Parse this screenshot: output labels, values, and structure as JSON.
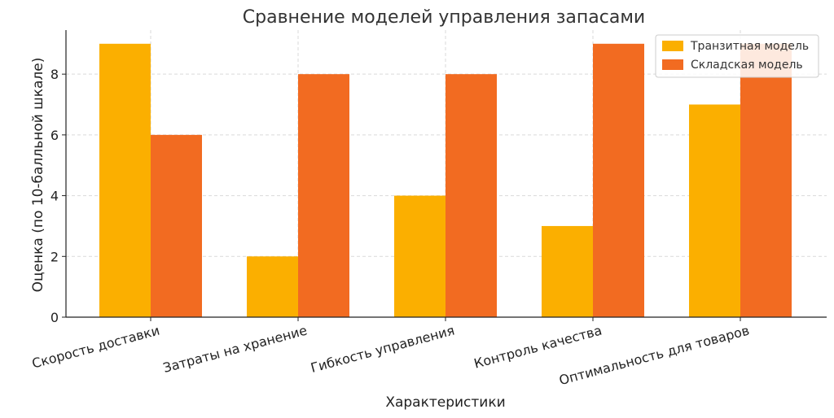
{
  "chart_data": {
    "type": "bar",
    "title": "Сравнение моделей управления запасами",
    "xlabel": "Характеристики",
    "ylabel": "Оценка (по 10-балльной шкале)",
    "categories": [
      "Скорость доставки",
      "Затраты на хранение",
      "Гибкость управления",
      "Контроль качества",
      "Оптимальность для товаров"
    ],
    "series": [
      {
        "name": "Транзитная модель",
        "color": "#FBAF00",
        "values": [
          9,
          2,
          4,
          3,
          7
        ]
      },
      {
        "name": "Складская модель",
        "color": "#F26B21",
        "values": [
          6,
          8,
          8,
          9,
          9
        ]
      }
    ],
    "ylim": [
      0,
      9.45
    ],
    "yticks": [
      0,
      2,
      4,
      6,
      8
    ],
    "grid": true,
    "legend_position": "top-right"
  }
}
